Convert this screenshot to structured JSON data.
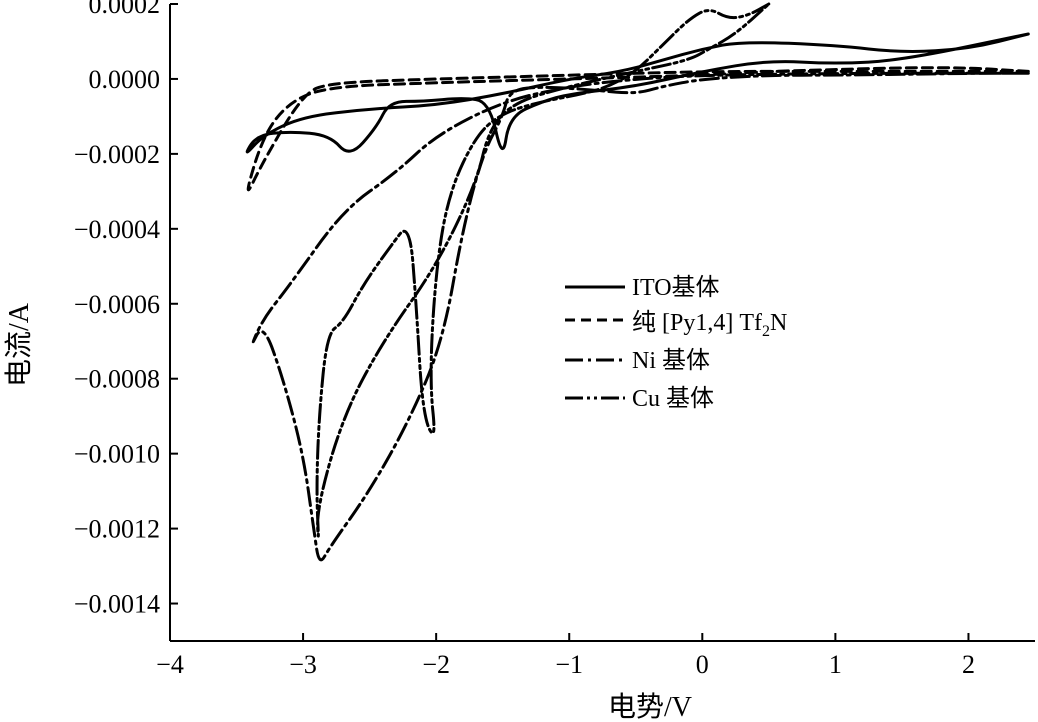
{
  "chart_data": {
    "type": "line",
    "xlabel": "电势/V",
    "ylabel": "电流/A",
    "xlim": [
      -4,
      2.5
    ],
    "ylim": [
      -0.0015,
      0.0002
    ],
    "xticks": [
      -4,
      -3,
      -2,
      -1,
      0,
      1,
      2
    ],
    "xtick_labels": [
      "−4",
      "−3",
      "−2",
      "−1",
      "0",
      "1",
      "2"
    ],
    "yticks": [
      0.0002,
      0,
      -0.0002,
      -0.0004,
      -0.0006,
      -0.0008,
      -0.001,
      -0.0012,
      -0.0014
    ],
    "ytick_labels": [
      "0.0002",
      "0.0000",
      "−0.0002",
      "−0.0004",
      "−0.0006",
      "−0.0008",
      "−0.0010",
      "−0.0012",
      "−0.0014"
    ],
    "grid": false,
    "legend_position": "center-right",
    "series": [
      {
        "name": "ITO基体",
        "style": "solid",
        "points": [
          [
            2.45,
            0.00012
          ],
          [
            2.0,
            8e-05
          ],
          [
            1.5,
            7e-05
          ],
          [
            1.0,
            9e-05
          ],
          [
            0.3,
            0.0001
          ],
          [
            0.0,
            8e-05
          ],
          [
            -0.3,
            5e-05
          ],
          [
            -0.6,
            2e-05
          ],
          [
            -1.0,
            0.0
          ],
          [
            -1.5,
            -4e-05
          ],
          [
            -2.0,
            -7e-05
          ],
          [
            -2.5,
            -8e-05
          ],
          [
            -3.0,
            -0.0001
          ],
          [
            -3.3,
            -0.00015
          ],
          [
            -3.45,
            -0.00021
          ],
          [
            -3.35,
            -0.00015
          ],
          [
            -3.1,
            -0.00014
          ],
          [
            -2.8,
            -0.00015
          ],
          [
            -2.65,
            -0.00021
          ],
          [
            -2.45,
            -0.00013
          ],
          [
            -2.35,
            -6e-05
          ],
          [
            -2.1,
            -6e-05
          ],
          [
            -1.8,
            -5e-05
          ],
          [
            -1.6,
            -6e-05
          ],
          [
            -1.5,
            -0.00022
          ],
          [
            -1.45,
            -0.0001
          ],
          [
            -1.2,
            -6e-05
          ],
          [
            -1.0,
            -4e-05
          ],
          [
            -0.5,
            -2e-05
          ],
          [
            0.0,
            2e-05
          ],
          [
            0.5,
            5e-05
          ],
          [
            1.0,
            4e-05
          ],
          [
            1.5,
            5e-05
          ],
          [
            2.45,
            0.00012
          ]
        ]
      },
      {
        "name": "纯 [Py1,4] Tf2N",
        "style": "dashed",
        "points": [
          [
            2.45,
            2e-05
          ],
          [
            2.0,
            3e-05
          ],
          [
            1.5,
            3e-05
          ],
          [
            1.0,
            2.5e-05
          ],
          [
            0.5,
            2e-05
          ],
          [
            0.0,
            1e-05
          ],
          [
            -1.0,
            0.0
          ],
          [
            -2.0,
            -1e-05
          ],
          [
            -2.8,
            -2e-05
          ],
          [
            -3.1,
            -6e-05
          ],
          [
            -3.3,
            -0.00015
          ],
          [
            -3.45,
            -0.00033
          ],
          [
            -3.3,
            -0.00022
          ],
          [
            -3.0,
            -4e-05
          ],
          [
            -2.8,
            -1e-05
          ],
          [
            -2.0,
            0.0
          ],
          [
            -1.0,
            1e-05
          ],
          [
            0.0,
            2e-05
          ],
          [
            1.0,
            2e-05
          ],
          [
            2.0,
            2e-05
          ],
          [
            2.45,
            2e-05
          ]
        ]
      },
      {
        "name": "Ni 基体",
        "style": "dashdot",
        "points": [
          [
            2.45,
            1.5e-05
          ],
          [
            2.0,
            1.5e-05
          ],
          [
            1.0,
            1e-05
          ],
          [
            0.5,
            1e-05
          ],
          [
            0.0,
            0.0
          ],
          [
            -0.3,
            -2e-05
          ],
          [
            -0.5,
            -4e-05
          ],
          [
            -0.8,
            -3e-05
          ],
          [
            -1.2,
            -2e-05
          ],
          [
            -1.45,
            -3e-05
          ],
          [
            -1.5,
            -0.0001
          ],
          [
            -1.65,
            -0.0002
          ],
          [
            -1.8,
            -0.0004
          ],
          [
            -1.95,
            -0.0007
          ],
          [
            -2.2,
            -0.00091
          ],
          [
            -2.5,
            -0.0011
          ],
          [
            -2.8,
            -0.00125
          ],
          [
            -2.88,
            -0.0013
          ],
          [
            -2.92,
            -0.0012
          ],
          [
            -3.0,
            -0.001
          ],
          [
            -3.15,
            -0.0008
          ],
          [
            -3.3,
            -0.00065
          ],
          [
            -3.4,
            -0.00072
          ],
          [
            -3.3,
            -0.00064
          ],
          [
            -3.1,
            -0.00055
          ],
          [
            -2.7,
            -0.00035
          ],
          [
            -2.3,
            -0.00025
          ],
          [
            -2.0,
            -0.00015
          ],
          [
            -1.5,
            -6e-05
          ],
          [
            -1.0,
            -2e-05
          ],
          [
            -0.5,
            0.0
          ],
          [
            0.0,
            1e-05
          ],
          [
            1.0,
            1.5e-05
          ],
          [
            2.45,
            1.5e-05
          ]
        ]
      },
      {
        "name": "Cu 基体",
        "style": "dashdotdot",
        "points": [
          [
            0.5,
            0.0002
          ],
          [
            0.35,
            0.00017
          ],
          [
            0.2,
            0.00016
          ],
          [
            0.05,
            0.00019
          ],
          [
            -0.1,
            0.00016
          ],
          [
            -0.3,
            9e-05
          ],
          [
            -0.5,
            2e-05
          ],
          [
            -0.7,
            -2e-05
          ],
          [
            -0.9,
            -4e-05
          ],
          [
            -1.2,
            -6e-05
          ],
          [
            -1.5,
            -9e-05
          ],
          [
            -1.7,
            -0.00015
          ],
          [
            -1.9,
            -0.0003
          ],
          [
            -2.0,
            -0.0005
          ],
          [
            -2.05,
            -0.0008
          ],
          [
            -2.0,
            -0.00097
          ],
          [
            -2.1,
            -0.0009
          ],
          [
            -2.15,
            -0.0006
          ],
          [
            -2.2,
            -0.00038
          ],
          [
            -2.35,
            -0.00045
          ],
          [
            -2.55,
            -0.00055
          ],
          [
            -2.7,
            -0.00065
          ],
          [
            -2.82,
            -0.00068
          ],
          [
            -2.88,
            -0.0009
          ],
          [
            -2.9,
            -0.0011
          ],
          [
            -2.88,
            -0.00125
          ],
          [
            -2.9,
            -0.00115
          ],
          [
            -2.7,
            -0.0009
          ],
          [
            -2.4,
            -0.0007
          ],
          [
            -2.0,
            -0.0005
          ],
          [
            -1.7,
            -0.00028
          ],
          [
            -1.6,
            -0.00013
          ],
          [
            -1.4,
            -6e-05
          ],
          [
            -1.0,
            -2e-05
          ],
          [
            -0.5,
            2e-05
          ],
          [
            -0.1,
            5e-05
          ],
          [
            0.05,
            8e-05
          ],
          [
            0.25,
            0.00012
          ],
          [
            0.5,
            0.0002
          ]
        ]
      }
    ],
    "legend": [
      {
        "label": "ITO基体",
        "style": "solid"
      },
      {
        "label_main": "纯 [Py1,4] Tf",
        "label_sub": "2",
        "label_tail": "N",
        "style": "dashed"
      },
      {
        "label": "Ni 基体",
        "style": "dashdot"
      },
      {
        "label": "Cu 基体",
        "style": "dashdotdot"
      }
    ]
  }
}
